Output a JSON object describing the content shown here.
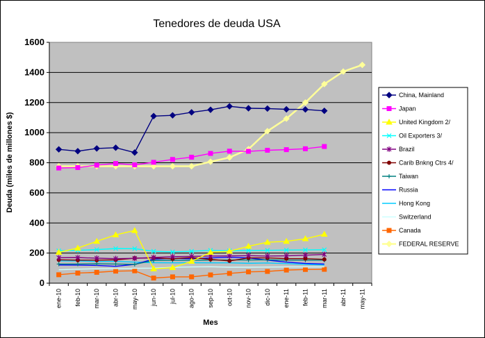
{
  "chart_data": {
    "type": "line",
    "title": "Tenedores de deuda USA",
    "xlabel": "Mes",
    "ylabel": "Deuda (miles de millones $)",
    "ylim": [
      0,
      1600
    ],
    "yticks": [
      0,
      200,
      400,
      600,
      800,
      1000,
      1200,
      1400,
      1600
    ],
    "grid": "horizontal",
    "legend_position": "right",
    "categories": [
      "ene-10",
      "feb-10",
      "mar-10",
      "abr-10",
      "may-10",
      "jun-10",
      "jul-10",
      "ago-10",
      "sep-10",
      "oct-10",
      "nov-10",
      "dic-10",
      "ene-11",
      "feb-11",
      "mar-11",
      "abr-11",
      "may-11"
    ],
    "series": [
      {
        "name": "China, Mainland",
        "color": "#000080",
        "marker": "diamond",
        "values": [
          889,
          877,
          895,
          900,
          868,
          1110,
          1115,
          1135,
          1152,
          1175,
          1162,
          1160,
          1155,
          1154,
          1145,
          null,
          null
        ]
      },
      {
        "name": "Japan",
        "color": "#ff00ff",
        "marker": "square",
        "values": [
          765,
          768,
          784,
          795,
          786,
          803,
          822,
          837,
          862,
          877,
          876,
          883,
          887,
          893,
          908,
          null,
          null
        ]
      },
      {
        "name": "United Kingdom 2/",
        "color": "#ffff00",
        "marker": "triangle",
        "values": [
          205,
          233,
          278,
          321,
          350,
          95,
          103,
          145,
          205,
          212,
          245,
          272,
          278,
          295,
          325,
          null,
          null
        ]
      },
      {
        "name": "Oil Exporters 3/",
        "color": "#00ffff",
        "marker": "x",
        "values": [
          215,
          218,
          223,
          230,
          229,
          212,
          208,
          212,
          218,
          215,
          217,
          218,
          220,
          221,
          222,
          null,
          null
        ]
      },
      {
        "name": "Brazil",
        "color": "#800080",
        "marker": "star",
        "values": [
          169,
          170,
          166,
          163,
          165,
          171,
          176,
          178,
          180,
          181,
          183,
          180,
          182,
          186,
          191,
          null,
          null
        ]
      },
      {
        "name": "Carib Bnkng Ctrs 4/",
        "color": "#800000",
        "marker": "circle",
        "values": [
          155,
          153,
          153,
          155,
          166,
          168,
          162,
          170,
          158,
          148,
          168,
          168,
          163,
          163,
          158,
          null,
          null
        ]
      },
      {
        "name": "Taiwan",
        "color": "#008080",
        "marker": "plus",
        "values": [
          127,
          127,
          129,
          127,
          125,
          151,
          152,
          152,
          153,
          154,
          154,
          155,
          153,
          153,
          153,
          null,
          null
        ]
      },
      {
        "name": "Russia",
        "color": "#0000ff",
        "marker": "none",
        "values": [
          121,
          120,
          118,
          112,
          125,
          160,
          165,
          162,
          168,
          172,
          168,
          153,
          140,
          131,
          127,
          null,
          null
        ]
      },
      {
        "name": "Hong Kong",
        "color": "#00ccff",
        "marker": "none",
        "values": [
          148,
          148,
          144,
          145,
          140,
          136,
          135,
          136,
          135,
          135,
          132,
          134,
          130,
          125,
          121,
          null,
          null
        ]
      },
      {
        "name": "Switzerland",
        "color": "#ccffff",
        "marker": "none",
        "values": [
          89,
          93,
          96,
          97,
          99,
          100,
          105,
          108,
          109,
          106,
          106,
          107,
          108,
          108,
          108,
          null,
          null
        ]
      },
      {
        "name": "Canada",
        "color": "#ff6600",
        "marker": "square",
        "values": [
          56,
          67,
          72,
          80,
          82,
          34,
          42,
          42,
          55,
          65,
          75,
          78,
          87,
          91,
          92,
          null,
          null
        ]
      },
      {
        "name": "FEDERAL RESERVE",
        "color": "#ffff99",
        "marker": "diamond",
        "values": [
          777,
          777,
          777,
          777,
          777,
          777,
          777,
          777,
          807,
          835,
          890,
          1010,
          1093,
          1200,
          1323,
          1406,
          1450
        ]
      }
    ]
  }
}
